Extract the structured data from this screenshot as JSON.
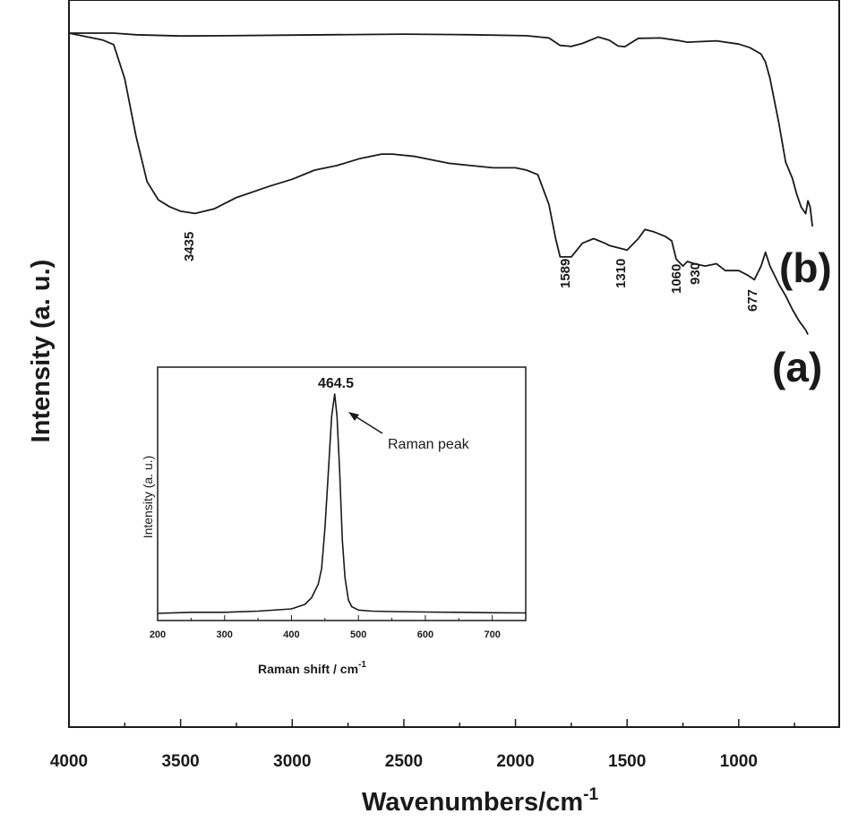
{
  "chart_data": [
    {
      "type": "line",
      "xlabel": "Wavenumbers/cm",
      "xlabel_superscript": "-1",
      "ylabel": "Intensity (a. u.)",
      "xlim": [
        4000,
        550
      ],
      "x_reversed": true,
      "x_ticks": [
        4000,
        3500,
        3000,
        2500,
        2000,
        1500,
        1000
      ],
      "y_tick_labels": false,
      "grid": false,
      "series": [
        {
          "name": "(b)",
          "x": [
            4000,
            3800,
            3700,
            3500,
            3300,
            3000,
            2500,
            2200,
            1950,
            1850,
            1800,
            1750,
            1700,
            1630,
            1580,
            1540,
            1510,
            1450,
            1350,
            1270,
            1230,
            1100,
            1000,
            950,
            900,
            880,
            860,
            820,
            790,
            760,
            740,
            720,
            700,
            690,
            680,
            670
          ],
          "y": [
            0,
            0,
            0.5,
            0.9,
            0.8,
            0.6,
            0.3,
            0.5,
            0.8,
            1.5,
            3.8,
            4.1,
            3.2,
            1.2,
            2.2,
            4.0,
            4.2,
            1.6,
            1.5,
            2.3,
            2.8,
            2.4,
            3.4,
            4.5,
            6.5,
            9,
            14,
            28,
            40,
            45,
            50,
            54,
            56,
            52,
            54,
            60
          ]
        },
        {
          "name": "(a)",
          "x": [
            4000,
            3850,
            3800,
            3750,
            3700,
            3650,
            3600,
            3550,
            3500,
            3435,
            3350,
            3250,
            3100,
            3000,
            2900,
            2800,
            2700,
            2600,
            2550,
            2450,
            2400,
            2300,
            2200,
            2100,
            2000,
            1950,
            1900,
            1850,
            1820,
            1800,
            1750,
            1700,
            1650,
            1600,
            1580,
            1540,
            1500,
            1450,
            1420,
            1380,
            1330,
            1300,
            1280,
            1250,
            1230,
            1200,
            1150,
            1100,
            1060,
            1000,
            960,
            930,
            920,
            900,
            880,
            860,
            820,
            790,
            760,
            730,
            700,
            690
          ],
          "y": [
            0,
            3,
            5,
            20,
            45,
            65,
            73,
            76,
            78,
            79,
            77,
            72,
            67,
            64,
            60,
            58,
            55,
            53,
            53,
            54,
            55,
            57,
            58,
            59,
            59,
            60,
            62,
            75,
            90,
            98,
            98,
            92,
            90,
            92,
            93,
            94,
            95,
            90,
            86,
            87,
            89,
            91,
            99,
            102,
            100,
            101,
            102,
            101,
            104,
            104,
            106,
            108,
            106,
            102,
            96,
            102,
            110,
            115,
            121,
            126,
            130,
            132
          ]
        }
      ],
      "annotations": [
        "3435",
        "1589",
        "1310",
        "1060",
        "930",
        "677"
      ],
      "curve_labels": [
        "(b)",
        "(a)"
      ]
    },
    {
      "type": "line",
      "inset": true,
      "xlabel": "Raman shift / cm",
      "xlabel_superscript": "-1",
      "ylabel": "Intensity (a. u.)",
      "xlim": [
        200,
        750
      ],
      "x_ticks": [
        200,
        300,
        400,
        500,
        600,
        700
      ],
      "y_tick_labels": false,
      "ylim": [
        0,
        1
      ],
      "series": [
        {
          "name": "",
          "x": [
            200,
            250,
            300,
            350,
            400,
            420,
            430,
            440,
            445,
            450,
            455,
            460,
            464.5,
            468,
            472,
            476,
            480,
            485,
            490,
            500,
            520,
            550,
            600,
            650,
            700,
            750
          ],
          "y": [
            0.02,
            0.025,
            0.025,
            0.03,
            0.04,
            0.06,
            0.09,
            0.15,
            0.22,
            0.4,
            0.65,
            0.9,
            1.0,
            0.9,
            0.65,
            0.35,
            0.18,
            0.08,
            0.05,
            0.035,
            0.03,
            0.028,
            0.026,
            0.025,
            0.023,
            0.022
          ]
        }
      ],
      "peak_label": "464.5",
      "annotation": "Raman peak"
    }
  ]
}
